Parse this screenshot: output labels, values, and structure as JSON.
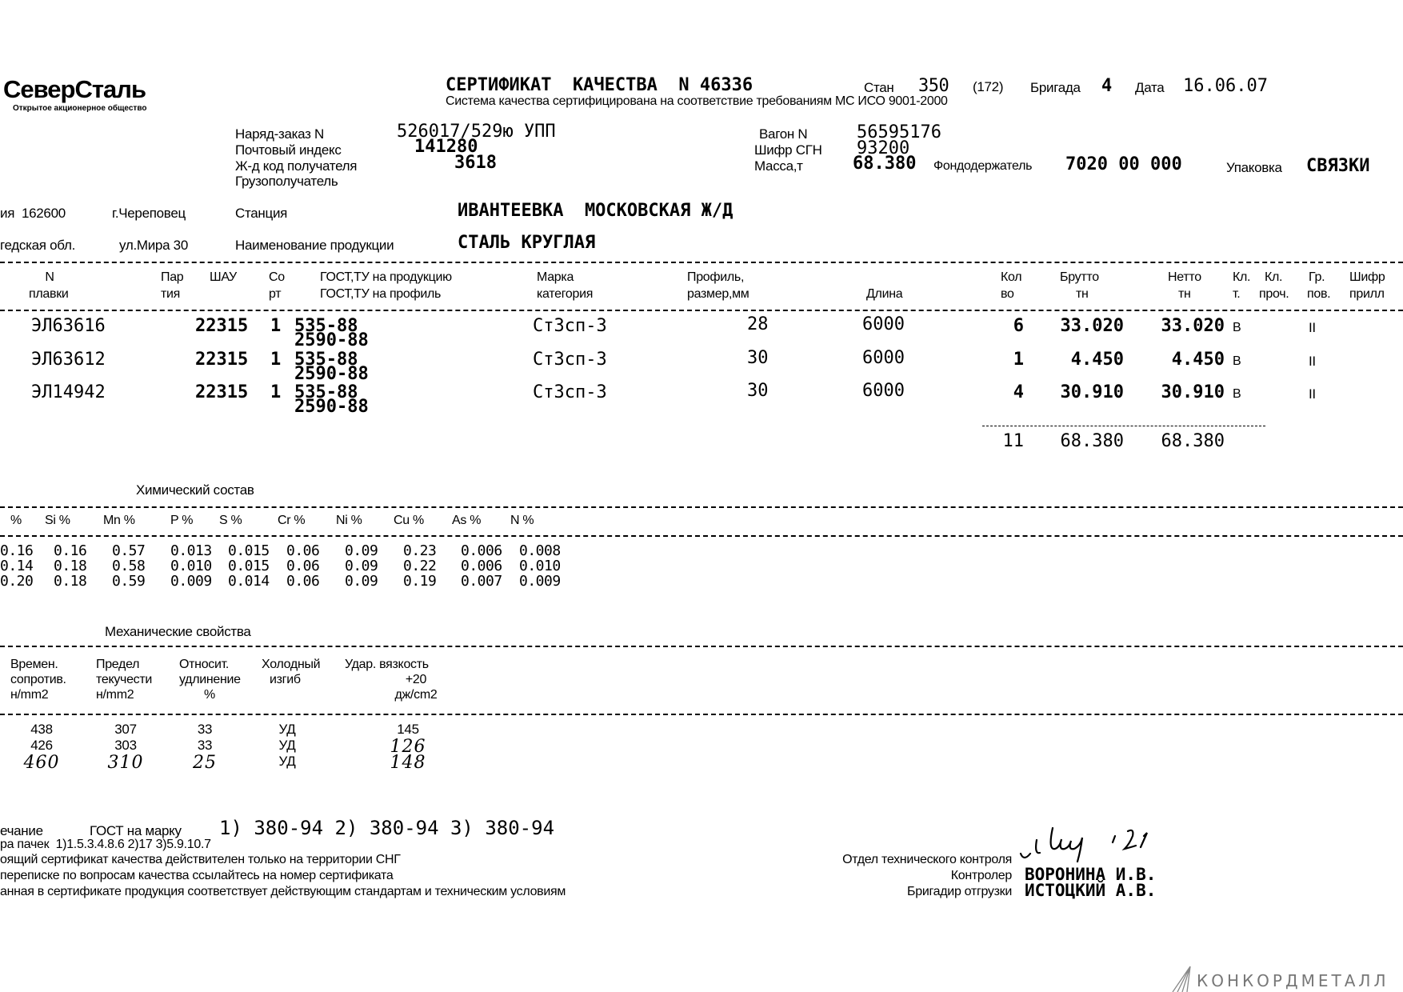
{
  "logo": {
    "name": "СеверСталь",
    "subtitle": "Открытое акционерное общество"
  },
  "header": {
    "title": "СЕРТИФИКАТ  КАЧЕСТВА  N 46336",
    "stan_label": "Стан",
    "stan_value": "350",
    "stan_extra": "(172)",
    "brigade_label": "Бригада",
    "brigade_value": "4",
    "date_label": "Дата",
    "date_value": "16.06.07",
    "subtitle": "Система качества сертифицирована на соответствие требованиям МС ИСО 9001-2000"
  },
  "order": {
    "order_label": "Наряд-заказ N",
    "order_value": "526017/529ю УПП",
    "postal_label": "Почтовый индекс",
    "postal_value": "141280",
    "rail_code_label": "Ж-д код получателя",
    "rail_code_value": "3618",
    "consignee_label": "Грузополучатель",
    "wagon_label": "Вагон N",
    "wagon_value": "56595176",
    "sgn_label": "Шифр СГН",
    "sgn_value": "93200",
    "mass_label": "Масса,т",
    "mass_value": "68.380",
    "fund_label": "Фондодержатель",
    "fund_value": "7020 00 000",
    "pack_label": "Упаковка",
    "pack_value": "СВЯЗКИ"
  },
  "address": {
    "line1_a": "ия  162600",
    "line1_b": "г.Череповец",
    "line2_a": "гедская обл.",
    "line2_b": "ул.Мира 30",
    "station_label": "Станция",
    "station_value": "ИВАНТЕЕВКА  МОСКОВСКАЯ Ж/Д",
    "product_label": "Наименование продукции",
    "product_value": "СТАЛЬ КРУГЛАЯ"
  },
  "table": {
    "headers": {
      "heat": [
        "N",
        "плавки"
      ],
      "party": [
        "Пар",
        "тия"
      ],
      "shau": "ШАУ",
      "sort": [
        "Со",
        "рт"
      ],
      "gost": [
        "ГОСТ,ТУ на продукцию",
        "ГОСТ,ТУ на профиль"
      ],
      "grade": [
        "Марка",
        "категория"
      ],
      "profile": [
        "Профиль,",
        "размер,мм"
      ],
      "length": "Длина",
      "qty": [
        "Кол",
        "во"
      ],
      "gross": [
        "Брутто",
        "тн"
      ],
      "net": [
        "Нетто",
        "тн"
      ],
      "cls1": [
        "Кл.",
        "т."
      ],
      "cls2": [
        "Кл.",
        "проч."
      ],
      "grp": [
        "Гр.",
        "пов."
      ],
      "code": [
        "Шифр",
        "прилл"
      ]
    },
    "rows": [
      {
        "heat": "ЭЛ63616",
        "party": "22315",
        "sort": "1",
        "gost1": "535-88",
        "gost2": "2590-88",
        "grade": "Ст3сп-3",
        "profile": "28",
        "length": "6000",
        "qty": "6",
        "gross": "33.020",
        "net": "33.020",
        "cls": "В",
        "grp": "II"
      },
      {
        "heat": "ЭЛ63612",
        "party": "22315",
        "sort": "1",
        "gost1": "535-88",
        "gost2": "2590-88",
        "grade": "Ст3сп-3",
        "profile": "30",
        "length": "6000",
        "qty": "1",
        "gross": "4.450",
        "net": "4.450",
        "cls": "В",
        "grp": "II"
      },
      {
        "heat": "ЭЛ14942",
        "party": "22315",
        "sort": "1",
        "gost1": "535-88",
        "gost2": "2590-88",
        "grade": "Ст3сп-3",
        "profile": "30",
        "length": "6000",
        "qty": "4",
        "gross": "30.910",
        "net": "30.910",
        "cls": "В",
        "grp": "II"
      }
    ],
    "totals": {
      "qty": "11",
      "gross": "68.380",
      "net": "68.380"
    }
  },
  "chem": {
    "title": "Химический состав",
    "headers": [
      "%",
      "Si %",
      "Mn %",
      "P %",
      "S %",
      "Cr %",
      "Ni %",
      "Cu %",
      "As %",
      "N %"
    ],
    "rows": [
      [
        "0.16",
        "0.16",
        "0.57",
        "0.013",
        "0.015",
        "0.06",
        "0.09",
        "0.23",
        "0.006",
        "0.008"
      ],
      [
        "0.14",
        "0.18",
        "0.58",
        "0.010",
        "0.015",
        "0.06",
        "0.09",
        "0.22",
        "0.006",
        "0.010"
      ],
      [
        "0.20",
        "0.18",
        "0.59",
        "0.009",
        "0.014",
        "0.06",
        "0.09",
        "0.19",
        "0.007",
        "0.009"
      ]
    ]
  },
  "mech": {
    "title": "Механические свойства",
    "headers": [
      [
        "Времен.",
        "сопротив.",
        "н/mm2"
      ],
      [
        "Предел",
        "текучести",
        "н/mm2"
      ],
      [
        "Относит.",
        "удлинение",
        "%"
      ],
      [
        "Холодный",
        "изгиб",
        ""
      ],
      [
        "Удар. вязкость",
        "+20",
        "дж/cm2"
      ]
    ],
    "rows": [
      [
        "438",
        "307",
        "33",
        "УД",
        "145"
      ],
      [
        "426",
        "303",
        "33",
        "УД",
        "126"
      ],
      [
        "460",
        "310",
        "25",
        "УД",
        "148"
      ]
    ]
  },
  "footer": {
    "note_label": "ечание",
    "gost_label": "ГОСТ на марку",
    "gost_value": "1) 380-94 2) 380-94 3) 380-94",
    "packs_line": "ра пачек  1)1.5.3.4.8.6 2)17 3)5.9.10.7",
    "line3": "оящий сертификат качества действителен только на территории СНГ",
    "line4": "переписке по вопросам качества ссылайтесь на номер сертификата",
    "line5": "анная в сертификате продукция соответствует действующим стандартам и техническим условиям",
    "otk_label": "Отдел технического контроля",
    "controller_label": "Контролер",
    "controller_name": "ВОРОНИНА И.В.",
    "brigadier_label": "Бригадир отгрузки",
    "brigadier_name": "ИСТОЦКИЙ А.В."
  },
  "watermark": "КОНКОРДМЕТАЛЛ"
}
